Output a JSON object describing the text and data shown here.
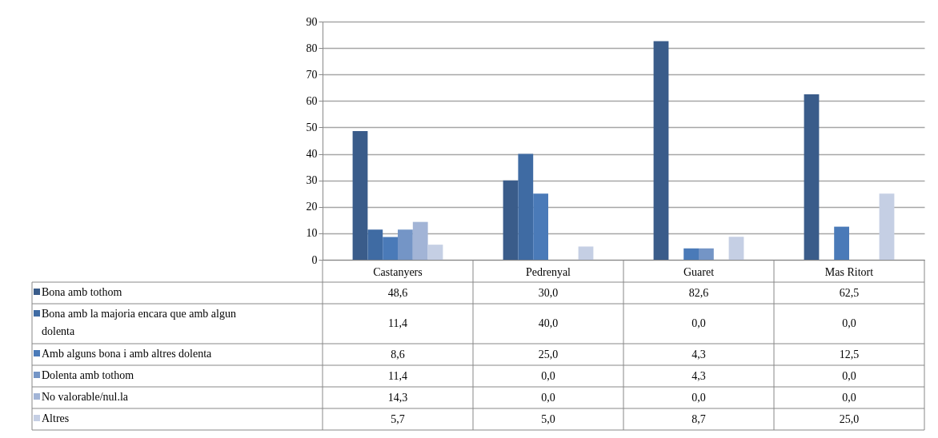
{
  "chart_data": {
    "type": "bar",
    "categories": [
      "Castanyers",
      "Pedrenyal",
      "Guaret",
      "Mas Ritort"
    ],
    "series": [
      {
        "name": "Bona amb tothom",
        "color": "#3a5c8a",
        "values": [
          48.6,
          30.0,
          82.6,
          62.5
        ],
        "value_labels": [
          "48,6",
          "30,0",
          "82,6",
          "62,5"
        ]
      },
      {
        "name": "Bona amb la majoria encara que amb algun dolenta",
        "color": "#3f6ba3",
        "values": [
          11.4,
          40.0,
          0.0,
          0.0
        ],
        "value_labels": [
          "11,4",
          "40,0",
          "0,0",
          "0,0"
        ]
      },
      {
        "name": "Amb alguns bona i amb altres dolenta",
        "color": "#4a7ab8",
        "values": [
          8.6,
          25.0,
          4.3,
          12.5
        ],
        "value_labels": [
          "8,6",
          "25,0",
          "4,3",
          "12,5"
        ]
      },
      {
        "name": "Dolenta amb tothom",
        "color": "#7495c6",
        "values": [
          11.4,
          0.0,
          4.3,
          0.0
        ],
        "value_labels": [
          "11,4",
          "0,0",
          "4,3",
          "0,0"
        ]
      },
      {
        "name": "No valorable/nul.la",
        "color": "#a2b4d6",
        "values": [
          14.3,
          0.0,
          0.0,
          0.0
        ],
        "value_labels": [
          "14,3",
          "0,0",
          "0,0",
          "0,0"
        ]
      },
      {
        "name": "Altres",
        "color": "#c5cfe4",
        "values": [
          5.7,
          5.0,
          8.7,
          25.0
        ],
        "value_labels": [
          "5,7",
          "5,0",
          "8,7",
          "25,0"
        ]
      }
    ],
    "ylim": [
      0,
      90
    ],
    "yticks": [
      0,
      10,
      20,
      30,
      40,
      50,
      60,
      70,
      80,
      90
    ],
    "grid": "y",
    "legend": "bottom"
  }
}
